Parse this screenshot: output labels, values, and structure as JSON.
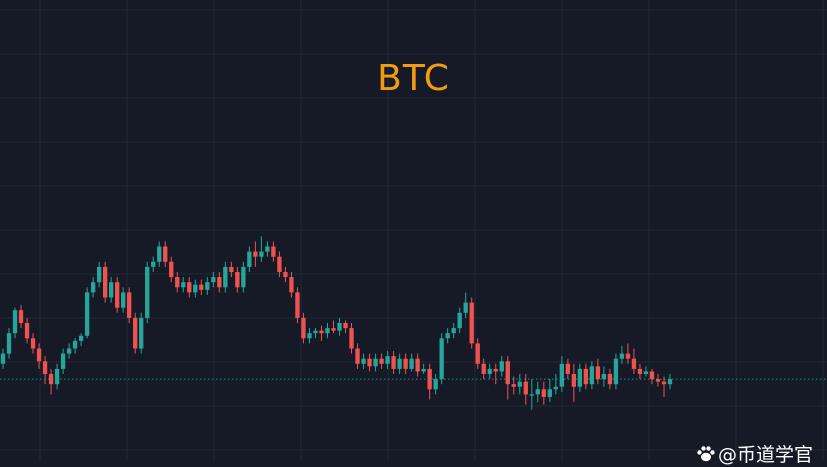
{
  "colors": {
    "background": "#161a26",
    "grid": "#232838",
    "up": "#26a69a",
    "down": "#ef5350",
    "title": "#f39c12",
    "price_line": "#26a69a"
  },
  "watermark": "@币道学官",
  "chart_data": {
    "type": "candlestick",
    "title": "BTC",
    "xlabel": "",
    "ylabel": "",
    "ylim": [
      0,
      100
    ],
    "grid": true,
    "current_price": 18,
    "candles": [
      [
        24,
        28,
        30,
        22
      ],
      [
        28,
        36,
        38,
        26
      ],
      [
        36,
        45,
        46,
        34
      ],
      [
        45,
        40,
        47,
        38
      ],
      [
        40,
        34,
        42,
        32
      ],
      [
        34,
        30,
        36,
        28
      ],
      [
        30,
        25,
        32,
        22
      ],
      [
        25,
        20,
        27,
        16
      ],
      [
        20,
        16,
        22,
        12
      ],
      [
        16,
        22,
        24,
        14
      ],
      [
        22,
        28,
        30,
        20
      ],
      [
        28,
        30,
        32,
        26
      ],
      [
        30,
        33,
        34,
        28
      ],
      [
        33,
        35,
        36,
        31
      ],
      [
        35,
        52,
        54,
        34
      ],
      [
        52,
        56,
        58,
        50
      ],
      [
        56,
        62,
        64,
        54
      ],
      [
        62,
        50,
        64,
        48
      ],
      [
        50,
        56,
        58,
        48
      ],
      [
        56,
        46,
        58,
        44
      ],
      [
        46,
        52,
        54,
        44
      ],
      [
        52,
        42,
        54,
        40
      ],
      [
        42,
        30,
        44,
        28
      ],
      [
        30,
        42,
        44,
        28
      ],
      [
        42,
        62,
        64,
        40
      ],
      [
        62,
        64,
        66,
        60
      ],
      [
        64,
        70,
        72,
        62
      ],
      [
        70,
        64,
        72,
        62
      ],
      [
        64,
        58,
        66,
        56
      ],
      [
        58,
        54,
        60,
        52
      ],
      [
        54,
        56,
        58,
        52
      ],
      [
        56,
        52,
        58,
        50
      ],
      [
        52,
        55,
        57,
        50
      ],
      [
        55,
        53,
        57,
        51
      ],
      [
        53,
        56,
        58,
        51
      ],
      [
        56,
        58,
        60,
        54
      ],
      [
        58,
        54,
        60,
        52
      ],
      [
        54,
        62,
        64,
        52
      ],
      [
        62,
        60,
        64,
        58
      ],
      [
        60,
        54,
        62,
        52
      ],
      [
        54,
        62,
        64,
        52
      ],
      [
        62,
        68,
        70,
        60
      ],
      [
        68,
        66,
        72,
        62
      ],
      [
        66,
        68,
        74,
        64
      ],
      [
        68,
        70,
        72,
        66
      ],
      [
        70,
        66,
        72,
        64
      ],
      [
        66,
        60,
        68,
        58
      ],
      [
        60,
        58,
        62,
        56
      ],
      [
        58,
        52,
        60,
        50
      ],
      [
        52,
        42,
        54,
        40
      ],
      [
        42,
        34,
        44,
        32
      ],
      [
        34,
        36,
        38,
        32
      ],
      [
        36,
        37,
        38,
        34
      ],
      [
        37,
        36,
        39,
        33
      ],
      [
        36,
        38,
        40,
        34
      ],
      [
        38,
        37,
        41,
        36
      ],
      [
        37,
        40,
        42,
        35
      ],
      [
        40,
        38,
        41,
        36
      ],
      [
        38,
        30,
        40,
        28
      ],
      [
        30,
        24,
        32,
        22
      ],
      [
        24,
        26,
        28,
        22
      ],
      [
        26,
        23,
        28,
        21
      ],
      [
        23,
        26,
        28,
        21
      ],
      [
        26,
        24,
        28,
        22
      ],
      [
        24,
        27,
        29,
        22
      ],
      [
        27,
        22,
        29,
        20
      ],
      [
        22,
        26,
        28,
        20
      ],
      [
        26,
        22,
        28,
        20
      ],
      [
        22,
        26,
        28,
        21
      ],
      [
        26,
        21,
        28,
        19
      ],
      [
        21,
        22,
        24,
        20
      ],
      [
        22,
        14,
        24,
        10
      ],
      [
        14,
        18,
        20,
        12
      ],
      [
        18,
        34,
        36,
        16
      ],
      [
        34,
        36,
        38,
        32
      ],
      [
        36,
        38,
        40,
        34
      ],
      [
        38,
        44,
        46,
        36
      ],
      [
        44,
        48,
        52,
        42
      ],
      [
        48,
        32,
        50,
        30
      ],
      [
        32,
        24,
        34,
        22
      ],
      [
        24,
        20,
        26,
        18
      ],
      [
        20,
        22,
        24,
        18
      ],
      [
        22,
        21,
        24,
        16
      ],
      [
        21,
        25,
        27,
        19
      ],
      [
        25,
        16,
        27,
        10
      ],
      [
        16,
        15,
        19,
        12
      ],
      [
        15,
        17,
        20,
        12
      ],
      [
        17,
        12,
        20,
        8
      ],
      [
        12,
        12,
        18,
        6
      ],
      [
        12,
        14,
        17,
        9
      ],
      [
        14,
        11,
        17,
        8
      ],
      [
        11,
        14,
        18,
        9
      ],
      [
        14,
        15,
        20,
        12
      ],
      [
        15,
        24,
        27,
        13
      ],
      [
        24,
        20,
        26,
        18
      ],
      [
        20,
        15,
        24,
        9
      ],
      [
        15,
        22,
        24,
        13
      ],
      [
        22,
        16,
        24,
        14
      ],
      [
        16,
        23,
        25,
        14
      ],
      [
        23,
        18,
        26,
        16
      ],
      [
        18,
        20,
        23,
        15
      ],
      [
        20,
        16,
        22,
        14
      ],
      [
        16,
        26,
        28,
        14
      ],
      [
        26,
        28,
        31,
        24
      ],
      [
        28,
        26,
        32,
        24
      ],
      [
        26,
        22,
        30,
        20
      ],
      [
        22,
        20,
        24,
        18
      ],
      [
        20,
        21,
        23,
        19
      ],
      [
        21,
        18,
        22,
        16
      ],
      [
        18,
        17,
        20,
        15
      ],
      [
        17,
        16,
        19,
        11
      ],
      [
        16,
        18,
        20,
        14
      ]
    ]
  }
}
